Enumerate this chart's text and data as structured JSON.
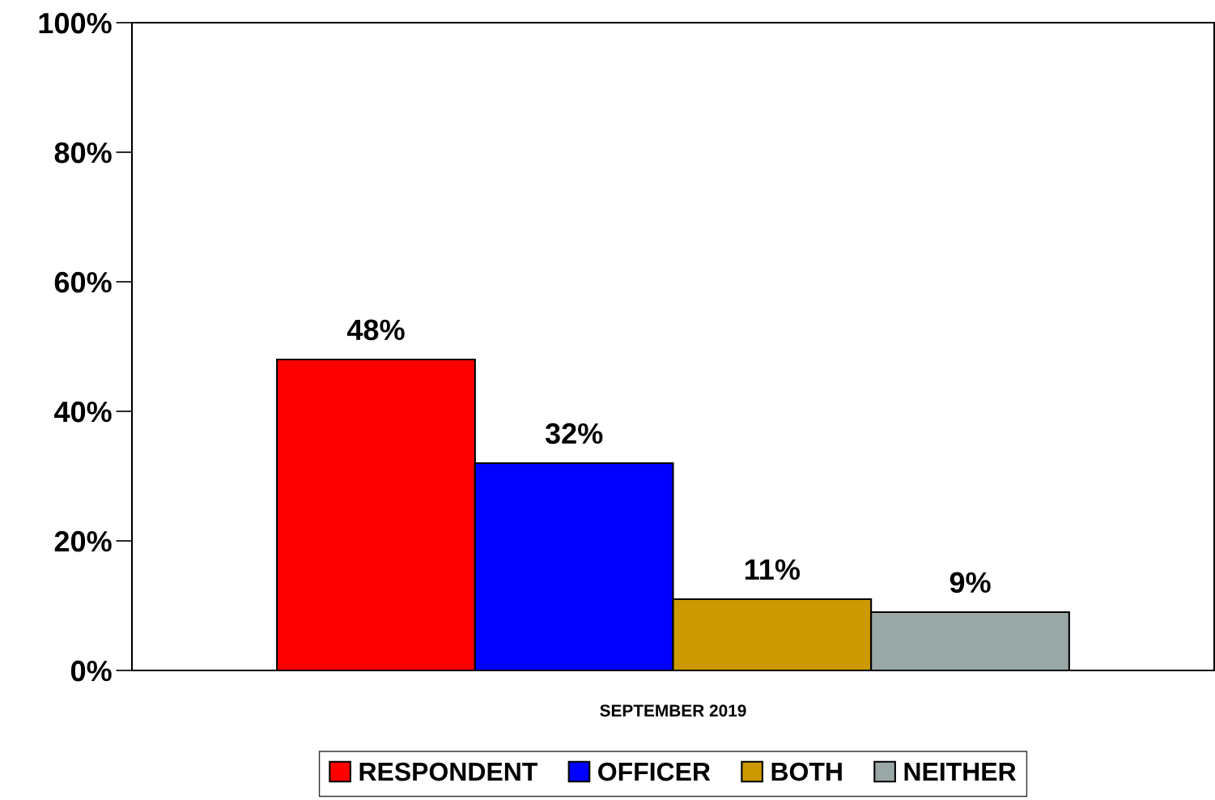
{
  "chart_data": {
    "type": "bar",
    "categories": [
      "SEPTEMBER 2019"
    ],
    "series": [
      {
        "name": "RESPONDENT",
        "color": "#ff0000",
        "values": [
          48
        ],
        "value_labels": [
          "48%"
        ]
      },
      {
        "name": "OFFICER",
        "color": "#0000ff",
        "values": [
          32
        ],
        "value_labels": [
          "32%"
        ]
      },
      {
        "name": "BOTH",
        "color": "#cc9900",
        "values": [
          11
        ],
        "value_labels": [
          "11%"
        ]
      },
      {
        "name": "NEITHER",
        "color": "#99a8a6",
        "values": [
          9
        ],
        "value_labels": [
          "9%"
        ]
      }
    ],
    "ylim": [
      0,
      100
    ],
    "yticks": [
      {
        "value": 0,
        "label": "0%"
      },
      {
        "value": 20,
        "label": "20%"
      },
      {
        "value": 40,
        "label": "40%"
      },
      {
        "value": 60,
        "label": "60%"
      },
      {
        "value": 80,
        "label": "80%"
      },
      {
        "value": 100,
        "label": "100%"
      }
    ],
    "grid": false,
    "legend": "bottom"
  }
}
